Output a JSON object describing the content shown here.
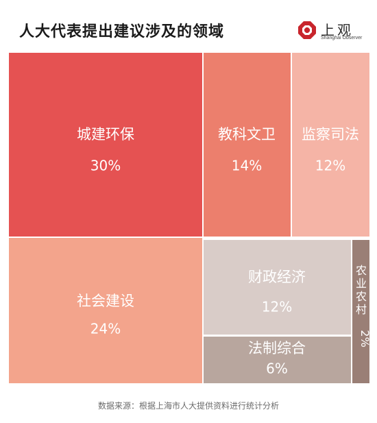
{
  "header": {
    "title": "人大代表提出建议涉及的领域"
  },
  "logo": {
    "cn": "上观",
    "en": "Shanghai Observer"
  },
  "source": "数据来源：根据上海市人大提供资料进行统计分析",
  "chart_data": {
    "type": "treemap",
    "title": "人大代表提出建议涉及的领域",
    "unit": "%",
    "items": [
      {
        "label": "城建环保",
        "value": 30,
        "display": "30%",
        "color": "#e55252"
      },
      {
        "label": "教科文卫",
        "value": 14,
        "display": "14%",
        "color": "#ec7f6d"
      },
      {
        "label": "监察司法",
        "value": 12,
        "display": "12%",
        "color": "#f5b4a6"
      },
      {
        "label": "社会建设",
        "value": 24,
        "display": "24%",
        "color": "#f3a48c"
      },
      {
        "label": "财政经济",
        "value": 12,
        "display": "12%",
        "color": "#d9ccc8"
      },
      {
        "label": "法制综合",
        "value": 6,
        "display": "6%",
        "color": "#b8a69e"
      },
      {
        "label": "农业农村",
        "value": 2,
        "display": "2%",
        "color": "#9a7f76"
      }
    ]
  }
}
